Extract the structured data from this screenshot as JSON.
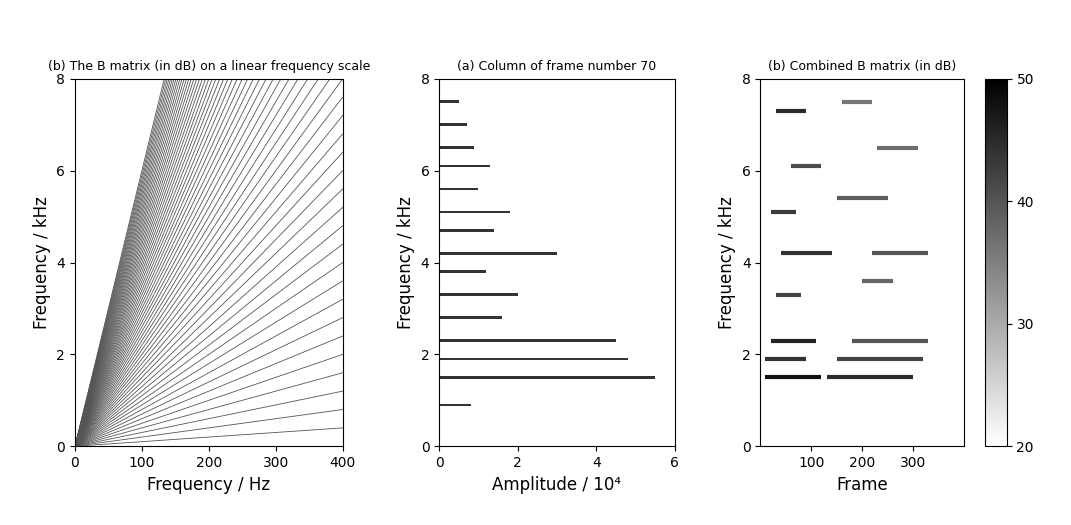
{
  "chart_data": [
    {
      "type": "line",
      "title": "(b) The B matrix (in dB) on a linear frequency scale",
      "x_label": "Frequency / Hz",
      "y_label": "Frequency / kHz",
      "xlim": [
        0,
        400
      ],
      "xticks": [
        0,
        100,
        200,
        300,
        400
      ],
      "ylim": [
        0,
        8
      ],
      "yticks": [
        0,
        2,
        4,
        6,
        8
      ],
      "color": "#555555",
      "harmonics": [
        1,
        2,
        3,
        4,
        5,
        6,
        7,
        8,
        9,
        10,
        11,
        12,
        13,
        14,
        15,
        16,
        17,
        18,
        19,
        20,
        21,
        22,
        23,
        24,
        25,
        26,
        27,
        28,
        29,
        30,
        31,
        32,
        33,
        34,
        35,
        36,
        37,
        38,
        39,
        40,
        41,
        42,
        43,
        44,
        45,
        46,
        47,
        48,
        49,
        50,
        51,
        52,
        53,
        54,
        55,
        56,
        57,
        58,
        59,
        60
      ]
    },
    {
      "type": "bar",
      "orientation": "horizontal",
      "title": "(a) Column of frame number 70",
      "x_label": "Amplitude / 10⁴",
      "y_label": "Frequency / kHz",
      "xlim": [
        0,
        6
      ],
      "xticks": [
        0,
        2,
        4,
        6
      ],
      "ylim": [
        0,
        8
      ],
      "yticks": [
        0,
        2,
        4,
        6,
        8
      ],
      "color": "#333333",
      "y": [
        0.9,
        1.5,
        1.9,
        2.3,
        2.8,
        3.3,
        3.8,
        4.2,
        4.7,
        5.1,
        5.6,
        6.1,
        6.5,
        7.0,
        7.5
      ],
      "values": [
        0.8,
        5.5,
        4.8,
        4.5,
        1.6,
        2.0,
        1.2,
        3.0,
        1.4,
        1.8,
        1.0,
        1.3,
        0.9,
        0.7,
        0.5
      ]
    },
    {
      "type": "heatmap",
      "title": "(b) Combined B matrix (in dB)",
      "x_label": "Frame",
      "y_label": "Frequency / kHz",
      "xlim": [
        0,
        400
      ],
      "xticks": [
        100,
        200,
        300
      ],
      "ylim": [
        0,
        8
      ],
      "yticks": [
        0,
        2,
        4,
        6,
        8
      ],
      "segments": [
        {
          "frames": [
            10,
            120
          ],
          "frequency": 1.5,
          "level": 48
        },
        {
          "frames": [
            130,
            300
          ],
          "frequency": 1.5,
          "level": 45
        },
        {
          "frames": [
            10,
            90
          ],
          "frequency": 1.9,
          "level": 44
        },
        {
          "frames": [
            150,
            320
          ],
          "frequency": 1.9,
          "level": 42
        },
        {
          "frames": [
            20,
            110
          ],
          "frequency": 2.3,
          "level": 46
        },
        {
          "frames": [
            180,
            330
          ],
          "frequency": 2.3,
          "level": 40
        },
        {
          "frames": [
            30,
            80
          ],
          "frequency": 3.3,
          "level": 42
        },
        {
          "frames": [
            200,
            260
          ],
          "frequency": 3.6,
          "level": 38
        },
        {
          "frames": [
            40,
            140
          ],
          "frequency": 4.2,
          "level": 44
        },
        {
          "frames": [
            220,
            330
          ],
          "frequency": 4.2,
          "level": 40
        },
        {
          "frames": [
            20,
            70
          ],
          "frequency": 5.1,
          "level": 43
        },
        {
          "frames": [
            150,
            250
          ],
          "frequency": 5.4,
          "level": 39
        },
        {
          "frames": [
            60,
            120
          ],
          "frequency": 6.1,
          "level": 41
        },
        {
          "frames": [
            230,
            310
          ],
          "frequency": 6.5,
          "level": 37
        },
        {
          "frames": [
            30,
            90
          ],
          "frequency": 7.3,
          "level": 45
        },
        {
          "frames": [
            160,
            220
          ],
          "frequency": 7.5,
          "level": 36
        }
      ],
      "colorbar": {
        "range": [
          20,
          50
        ],
        "ticks": [
          20,
          30,
          40,
          50
        ]
      }
    }
  ]
}
